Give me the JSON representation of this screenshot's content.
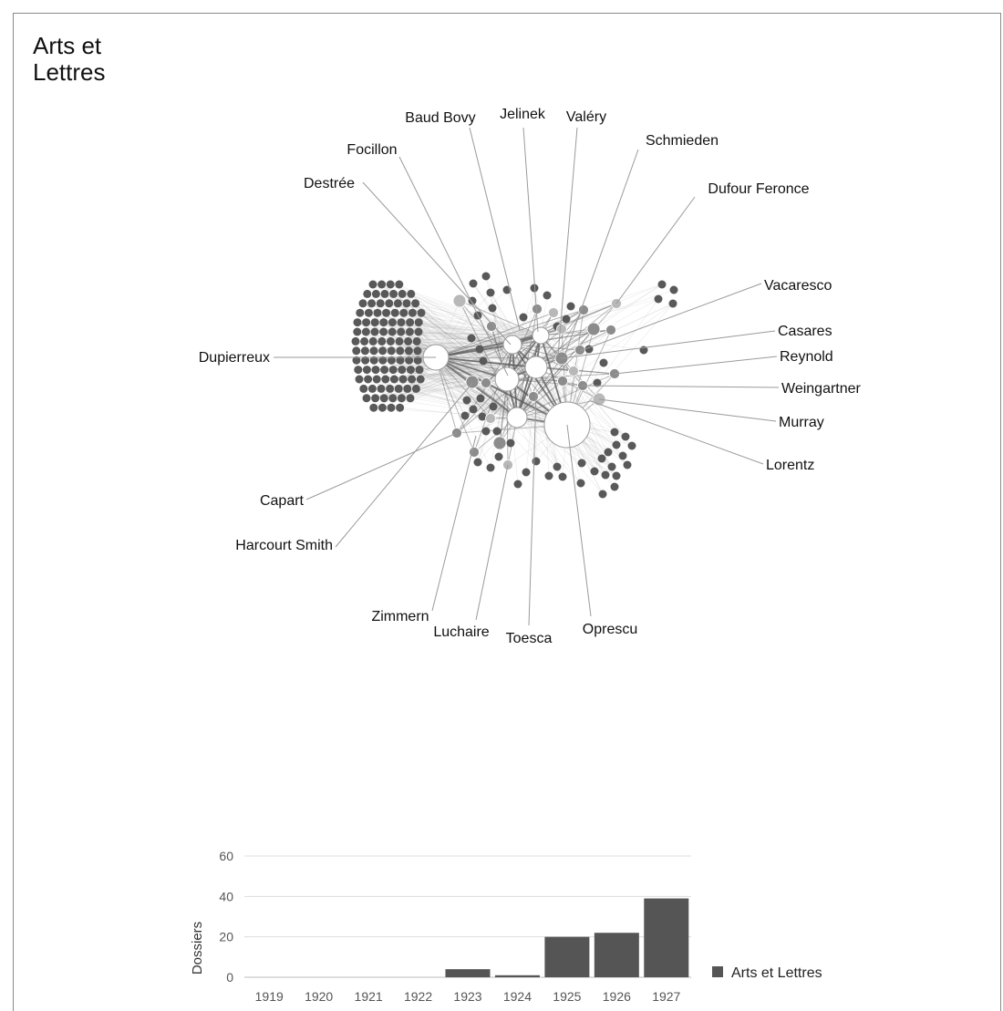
{
  "page": {
    "title": "Arts et Lettres"
  },
  "network": {
    "labels": [
      "Baud Bovy",
      "Jelinek",
      "Valéry",
      "Schmieden",
      "Focillon",
      "Destrée",
      "Dufour Feronce",
      "Vacaresco",
      "Casares",
      "Reynold",
      "Weingartner",
      "Murray",
      "Lorentz",
      "Dupierreux",
      "Capart",
      "Harcourt Smith",
      "Zimmern",
      "Luchaire",
      "Toesca",
      "Oprescu"
    ],
    "colors": {
      "hub_fill": "#ffffff",
      "hub_stroke": "#9a9a9a",
      "mid_node": "#8c8c8c",
      "light_node": "#b8b8b8",
      "leaf_node": "#595959",
      "edge": "#8a8a8a",
      "leader": "#9a9a9a"
    }
  },
  "chart_data": {
    "type": "bar",
    "categories": [
      "1919",
      "1920",
      "1921",
      "1922",
      "1923",
      "1924",
      "1925",
      "1926",
      "1927"
    ],
    "series": [
      {
        "name": "Arts et Lettres",
        "values": [
          0,
          0,
          0,
          0,
          4,
          1,
          20,
          22,
          39
        ]
      }
    ],
    "ylabel": "Dossiers",
    "xlabel": "",
    "ylim": [
      0,
      60
    ],
    "yticks": [
      0,
      20,
      40,
      60
    ],
    "grid": true,
    "legend": "right",
    "colors": {
      "bar": "#555555",
      "grid": "#dddddd"
    }
  }
}
